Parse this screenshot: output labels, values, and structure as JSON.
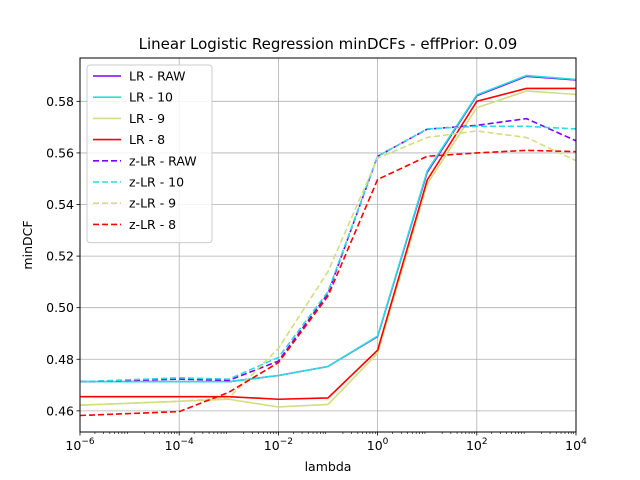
{
  "chart_data": {
    "type": "line",
    "title": "Linear Logistic Regression minDCFs - effPrior: 0.09",
    "xlabel": "lambda",
    "ylabel": "minDCF",
    "xscale": "log",
    "xlim": [
      1e-06,
      10000
    ],
    "ylim": [
      0.4518,
      0.5968
    ],
    "grid": true,
    "legend_position": "upper-left",
    "x": [
      1e-06,
      0.0001,
      0.001,
      0.01,
      0.1,
      1,
      10,
      100,
      1000,
      10000
    ],
    "x_ticks": [
      {
        "base": "10",
        "exp": "−6"
      },
      {
        "base": "10",
        "exp": "−4"
      },
      {
        "base": "10",
        "exp": "−2"
      },
      {
        "base": "10",
        "exp": "0"
      },
      {
        "base": "10",
        "exp": "2"
      },
      {
        "base": "10",
        "exp": "4"
      }
    ],
    "y_ticks": [
      "0.46",
      "0.48",
      "0.50",
      "0.52",
      "0.54",
      "0.56",
      "0.58"
    ],
    "series": [
      {
        "name": "LR - RAW",
        "color": "#8000ff",
        "dash": "solid",
        "values": [
          0.4713,
          0.4713,
          0.4713,
          0.4737,
          0.4772,
          0.4888,
          0.5525,
          0.5822,
          0.5897,
          0.5883
        ]
      },
      {
        "name": "LR - 10",
        "color": "#2adddd",
        "dash": "solid",
        "values": [
          0.4713,
          0.4713,
          0.4713,
          0.4737,
          0.4772,
          0.489,
          0.553,
          0.5825,
          0.59,
          0.5885
        ]
      },
      {
        "name": "LR - 9",
        "color": "#d4dd80",
        "dash": "solid",
        "values": [
          0.4622,
          0.4637,
          0.4645,
          0.4615,
          0.4625,
          0.4823,
          0.548,
          0.5775,
          0.584,
          0.5827
        ]
      },
      {
        "name": "LR - 8",
        "color": "#ff0000",
        "dash": "solid",
        "values": [
          0.4655,
          0.4655,
          0.4655,
          0.4645,
          0.465,
          0.4835,
          0.5495,
          0.58,
          0.585,
          0.585
        ]
      },
      {
        "name": "z-LR - RAW",
        "color": "#8000ff",
        "dash": "dashed",
        "values": [
          0.4713,
          0.4723,
          0.4718,
          0.4793,
          0.5055,
          0.5587,
          0.5692,
          0.5707,
          0.5733,
          0.5647
        ]
      },
      {
        "name": "z-LR - 10",
        "color": "#2adddd",
        "dash": "dashed",
        "values": [
          0.4713,
          0.4728,
          0.4723,
          0.4807,
          0.5062,
          0.5587,
          0.5693,
          0.5703,
          0.5703,
          0.5693
        ]
      },
      {
        "name": "z-LR - 9",
        "color": "#d4dd80",
        "dash": "dashed",
        "values": [
          0.4622,
          0.4637,
          0.465,
          0.4842,
          0.514,
          0.558,
          0.566,
          0.5685,
          0.566,
          0.557
        ]
      },
      {
        "name": "z-LR - 8",
        "color": "#ff0000",
        "dash": "dashed",
        "values": [
          0.4582,
          0.4597,
          0.4672,
          0.4787,
          0.5045,
          0.5497,
          0.5587,
          0.56,
          0.561,
          0.5605
        ]
      }
    ]
  }
}
